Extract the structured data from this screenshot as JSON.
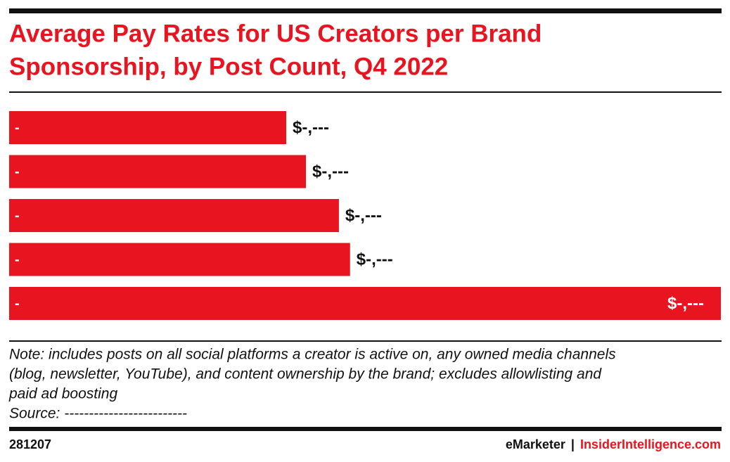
{
  "chart_data": {
    "type": "hbar",
    "title": [
      "Average Pay Rates for US Creators per Brand",
      "Sponsorship, by Post Count, Q4 2022"
    ],
    "categories": [
      "-",
      "-",
      "-",
      "-",
      "-"
    ],
    "values": [
      1168,
      1251,
      1390,
      1437,
      3000
    ],
    "value_labels": [
      "$-,---",
      "$-,---",
      "$-,---",
      "$-,---",
      "$-,---"
    ],
    "color": "#e8141f",
    "xlim": [
      0,
      3000
    ]
  },
  "note": [
    "Note: includes posts on all social platforms a creator is active on, any owned media channels",
    "(blog, newsletter, YouTube), and content ownership by the brand; excludes allowlisting and",
    "paid ad boosting"
  ],
  "source": "Source: -------------------------",
  "footer": {
    "id": "281207",
    "brand": "eMarketer",
    "separator": "|",
    "site": "InsiderIntelligence.com"
  }
}
